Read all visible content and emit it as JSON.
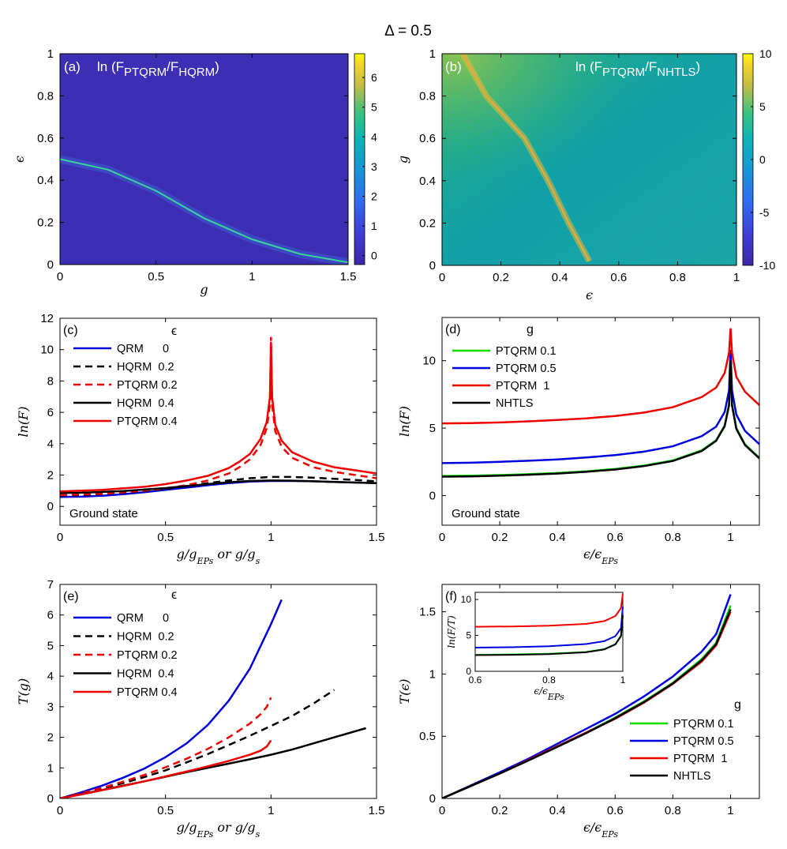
{
  "figure_title": "Δ = 0.5",
  "chart_data": [
    {
      "id": "a",
      "type": "heatmap",
      "panel_label": "(a)",
      "title_text": "ln (F",
      "title_sub1": "PTQRM",
      "title_mid": "/F",
      "title_sub2": "HQRM",
      "title_close": ")",
      "xlabel": "g",
      "ylabel": "ϵ",
      "xlim": [
        0,
        1.5
      ],
      "ylim": [
        0,
        1
      ],
      "xticks": [
        "0",
        "0.5",
        "1",
        "1.5"
      ],
      "yticks": [
        "0",
        "0.2",
        "0.4",
        "0.6",
        "0.8",
        "1"
      ],
      "colorbar": {
        "min": -0.3,
        "max": 6.8,
        "ticks": [
          "0",
          "1",
          "2",
          "3",
          "4",
          "5",
          "6"
        ]
      },
      "ridge": {
        "description_points": [
          [
            0,
            0.5
          ],
          [
            0.25,
            0.45
          ],
          [
            0.5,
            0.35
          ],
          [
            0.75,
            0.22
          ],
          [
            1.0,
            0.12
          ],
          [
            1.25,
            0.05
          ],
          [
            1.5,
            0.01
          ]
        ]
      }
    },
    {
      "id": "b",
      "type": "heatmap",
      "panel_label": "(b)",
      "title_text": "ln (F",
      "title_sub1": "PTQRM",
      "title_mid": "/F",
      "title_sub2": "NHTLS",
      "title_close": ")",
      "xlabel": "ϵ",
      "ylabel": "g",
      "xlim": [
        0,
        1
      ],
      "ylim": [
        0,
        1
      ],
      "xticks": [
        "0",
        "0.2",
        "0.4",
        "0.6",
        "0.8",
        "1"
      ],
      "yticks": [
        "0",
        "0.2",
        "0.4",
        "0.6",
        "0.8",
        "1"
      ],
      "colorbar": {
        "min": -10,
        "max": 10,
        "ticks": [
          "-10",
          "-5",
          "0",
          "5",
          "10"
        ]
      },
      "ridge": {
        "description_points": [
          [
            0.07,
            1.0
          ],
          [
            0.15,
            0.8
          ],
          [
            0.28,
            0.6
          ],
          [
            0.36,
            0.4
          ],
          [
            0.43,
            0.2
          ],
          [
            0.5,
            0.02
          ]
        ]
      },
      "dip_x": 0.5
    },
    {
      "id": "c",
      "type": "line",
      "panel_label": "(c)",
      "legend_header": "ϵ",
      "annotation": "Ground state",
      "xlabel": "g/g_EPs or g/g_s",
      "ylabel": "ln(F)",
      "xlim": [
        0,
        1.5
      ],
      "ylim": [
        -1.2,
        12
      ],
      "xticks": [
        "0",
        "0.5",
        "1",
        "1.5"
      ],
      "yticks": [
        "0",
        "2",
        "4",
        "6",
        "8",
        "10",
        "12"
      ],
      "series": [
        {
          "name": "QRM      0",
          "color": "#0000dd",
          "dash": "solid",
          "x": [
            0,
            0.1,
            0.2,
            0.3,
            0.4,
            0.5,
            0.6,
            0.7,
            0.8,
            0.9,
            1.0,
            1.1,
            1.2,
            1.3,
            1.4,
            1.5
          ],
          "y": [
            0.6,
            0.62,
            0.68,
            0.78,
            0.9,
            1.05,
            1.2,
            1.35,
            1.48,
            1.58,
            1.62,
            1.62,
            1.6,
            1.56,
            1.52,
            1.48
          ]
        },
        {
          "name": "HQRM  0.2",
          "color": "#000000",
          "dash": "dashed",
          "x": [
            0,
            0.1,
            0.2,
            0.3,
            0.4,
            0.5,
            0.6,
            0.7,
            0.8,
            0.9,
            1.0,
            1.1,
            1.2,
            1.3,
            1.4,
            1.5
          ],
          "y": [
            0.7,
            0.72,
            0.78,
            0.87,
            0.98,
            1.12,
            1.3,
            1.48,
            1.65,
            1.8,
            1.88,
            1.88,
            1.83,
            1.76,
            1.68,
            1.6
          ]
        },
        {
          "name": "PTQRM 0.2",
          "color": "#ee0000",
          "dash": "dashed",
          "x": [
            0,
            0.2,
            0.4,
            0.5,
            0.6,
            0.7,
            0.8,
            0.85,
            0.9,
            0.95,
            0.98,
            0.995,
            1.0,
            1.005,
            1.02,
            1.05,
            1.1,
            1.2,
            1.3,
            1.4,
            1.5
          ],
          "y": [
            0.72,
            0.8,
            1.0,
            1.15,
            1.35,
            1.65,
            2.1,
            2.5,
            3.0,
            3.9,
            5.0,
            6.5,
            10.8,
            6.5,
            4.8,
            3.8,
            3.1,
            2.5,
            2.2,
            2.0,
            1.8
          ]
        },
        {
          "name": "HQRM  0.4",
          "color": "#000000",
          "dash": "solid",
          "x": [
            0,
            0.1,
            0.2,
            0.3,
            0.4,
            0.5,
            0.6,
            0.7,
            0.8,
            0.9,
            1.0,
            1.1,
            1.2,
            1.3,
            1.4,
            1.5
          ],
          "y": [
            0.85,
            0.87,
            0.92,
            0.98,
            1.07,
            1.17,
            1.3,
            1.42,
            1.54,
            1.62,
            1.65,
            1.64,
            1.6,
            1.56,
            1.52,
            1.48
          ]
        },
        {
          "name": "PTQRM 0.4",
          "color": "#ee0000",
          "dash": "solid",
          "x": [
            0,
            0.2,
            0.4,
            0.5,
            0.6,
            0.7,
            0.8,
            0.85,
            0.9,
            0.95,
            0.98,
            0.995,
            1.0,
            1.005,
            1.02,
            1.05,
            1.1,
            1.2,
            1.3,
            1.4,
            1.5
          ],
          "y": [
            0.95,
            1.05,
            1.25,
            1.42,
            1.65,
            1.95,
            2.45,
            2.85,
            3.35,
            4.3,
            5.4,
            7.0,
            10.5,
            7.0,
            5.2,
            4.2,
            3.45,
            2.85,
            2.5,
            2.3,
            2.1
          ]
        }
      ]
    },
    {
      "id": "d",
      "type": "line",
      "panel_label": "(d)",
      "legend_header": "g",
      "annotation": "Ground state",
      "xlabel": "ϵ/ϵ_EPs",
      "ylabel": "ln(F)",
      "xlim": [
        0,
        1.1
      ],
      "ylim": [
        -2.2,
        13.2
      ],
      "xticks": [
        "0",
        "0.2",
        "0.4",
        "0.6",
        "0.8",
        "1"
      ],
      "yticks": [
        "0",
        "5",
        "10"
      ],
      "series": [
        {
          "name": "PTQRM 0.1",
          "color": "#00dd00",
          "dash": "solid",
          "x": [
            0,
            0.1,
            0.2,
            0.3,
            0.4,
            0.5,
            0.6,
            0.7,
            0.8,
            0.9,
            0.95,
            0.98,
            0.995,
            1.0,
            1.005,
            1.02,
            1.05,
            1.1
          ],
          "y": [
            1.45,
            1.47,
            1.52,
            1.58,
            1.67,
            1.8,
            1.97,
            2.22,
            2.6,
            3.35,
            4.1,
            5.2,
            6.8,
            10.2,
            6.8,
            5.0,
            3.8,
            2.8
          ]
        },
        {
          "name": "PTQRM 0.5",
          "color": "#0000dd",
          "dash": "solid",
          "x": [
            0,
            0.1,
            0.2,
            0.3,
            0.4,
            0.5,
            0.6,
            0.7,
            0.8,
            0.9,
            0.95,
            0.98,
            0.995,
            1.0,
            1.005,
            1.02,
            1.05,
            1.1
          ],
          "y": [
            2.4,
            2.43,
            2.5,
            2.58,
            2.68,
            2.82,
            3.0,
            3.25,
            3.65,
            4.4,
            5.1,
            6.2,
            7.8,
            10.8,
            7.8,
            6.0,
            4.8,
            3.8
          ]
        },
        {
          "name": "PTQRM  1",
          "color": "#ee0000",
          "dash": "solid",
          "x": [
            0,
            0.1,
            0.2,
            0.3,
            0.4,
            0.5,
            0.6,
            0.7,
            0.8,
            0.9,
            0.95,
            0.98,
            0.995,
            1.0,
            1.005,
            1.02,
            1.05,
            1.1
          ],
          "y": [
            5.35,
            5.37,
            5.42,
            5.5,
            5.6,
            5.72,
            5.9,
            6.15,
            6.55,
            7.3,
            8.0,
            9.1,
            10.6,
            12.4,
            10.6,
            8.8,
            7.7,
            6.7
          ]
        },
        {
          "name": "NHTLS",
          "color": "#000000",
          "dash": "solid",
          "x": [
            0,
            0.1,
            0.2,
            0.3,
            0.4,
            0.5,
            0.6,
            0.7,
            0.8,
            0.9,
            0.95,
            0.98,
            0.995,
            1.0,
            1.005,
            1.02,
            1.05,
            1.1
          ],
          "y": [
            1.4,
            1.42,
            1.47,
            1.54,
            1.63,
            1.76,
            1.93,
            2.18,
            2.56,
            3.3,
            4.05,
            5.15,
            6.7,
            10.0,
            6.7,
            4.95,
            3.75,
            2.75
          ]
        }
      ]
    },
    {
      "id": "e",
      "type": "line",
      "panel_label": "(e)",
      "legend_header": "ϵ",
      "xlabel": "g/g_EPs or g/g_s",
      "ylabel": "T(g)",
      "xlim": [
        0,
        1.5
      ],
      "ylim": [
        0,
        7
      ],
      "xticks": [
        "0",
        "0.5",
        "1",
        "1.5"
      ],
      "yticks": [
        "0",
        "1",
        "2",
        "3",
        "4",
        "5",
        "6",
        "7"
      ],
      "series": [
        {
          "name": "QRM      0",
          "color": "#0000dd",
          "dash": "solid",
          "x": [
            0,
            0.1,
            0.2,
            0.3,
            0.4,
            0.5,
            0.6,
            0.7,
            0.8,
            0.9,
            1.0,
            1.05
          ],
          "y": [
            0,
            0.2,
            0.42,
            0.68,
            0.98,
            1.35,
            1.8,
            2.4,
            3.2,
            4.25,
            5.7,
            6.5
          ]
        },
        {
          "name": "HQRM  0.2",
          "color": "#000000",
          "dash": "dashed",
          "x": [
            0,
            0.1,
            0.2,
            0.3,
            0.4,
            0.5,
            0.6,
            0.7,
            0.8,
            0.9,
            1.0,
            1.1,
            1.2,
            1.3
          ],
          "y": [
            0,
            0.16,
            0.33,
            0.5,
            0.7,
            0.92,
            1.18,
            1.45,
            1.75,
            2.05,
            2.37,
            2.7,
            3.1,
            3.55
          ]
        },
        {
          "name": "PTQRM 0.2",
          "color": "#ee0000",
          "dash": "dashed",
          "x": [
            0,
            0.1,
            0.2,
            0.3,
            0.4,
            0.5,
            0.6,
            0.7,
            0.8,
            0.9,
            0.95,
            0.98,
            1.0
          ],
          "y": [
            0,
            0.17,
            0.35,
            0.55,
            0.77,
            1.02,
            1.3,
            1.62,
            2.0,
            2.45,
            2.75,
            3.0,
            3.3
          ]
        },
        {
          "name": "HQRM  0.4",
          "color": "#000000",
          "dash": "solid",
          "x": [
            0,
            0.1,
            0.2,
            0.3,
            0.4,
            0.5,
            0.6,
            0.7,
            0.8,
            0.9,
            1.0,
            1.1,
            1.2,
            1.3,
            1.45
          ],
          "y": [
            0,
            0.14,
            0.28,
            0.42,
            0.56,
            0.71,
            0.86,
            1.0,
            1.14,
            1.28,
            1.43,
            1.6,
            1.8,
            2.0,
            2.3
          ]
        },
        {
          "name": "PTQRM 0.4",
          "color": "#ee0000",
          "dash": "solid",
          "x": [
            0,
            0.1,
            0.2,
            0.3,
            0.4,
            0.5,
            0.6,
            0.7,
            0.8,
            0.9,
            0.95,
            0.98,
            1.0
          ],
          "y": [
            0,
            0.13,
            0.27,
            0.41,
            0.56,
            0.72,
            0.88,
            1.05,
            1.23,
            1.43,
            1.56,
            1.7,
            1.9
          ]
        }
      ]
    },
    {
      "id": "f",
      "type": "line",
      "panel_label": "(f)",
      "legend_header": "g",
      "xlabel": "ϵ/ϵ_EPs",
      "ylabel": "T(ϵ)",
      "xlim": [
        0,
        1.1
      ],
      "ylim": [
        0,
        1.72
      ],
      "xticks": [
        "0",
        "0.2",
        "0.4",
        "0.6",
        "0.8",
        "1"
      ],
      "yticks": [
        "0",
        "0.5",
        "1",
        "1.5"
      ],
      "series": [
        {
          "name": "PTQRM 0.1",
          "color": "#00dd00",
          "dash": "solid",
          "x": [
            0,
            0.1,
            0.2,
            0.3,
            0.4,
            0.5,
            0.6,
            0.7,
            0.8,
            0.9,
            0.95,
            1.0
          ],
          "y": [
            0,
            0.1,
            0.2,
            0.31,
            0.42,
            0.53,
            0.65,
            0.78,
            0.93,
            1.12,
            1.25,
            1.55
          ]
        },
        {
          "name": "PTQRM 0.5",
          "color": "#0000dd",
          "dash": "solid",
          "x": [
            0,
            0.1,
            0.2,
            0.3,
            0.4,
            0.5,
            0.6,
            0.7,
            0.8,
            0.9,
            0.95,
            1.0
          ],
          "y": [
            0,
            0.105,
            0.21,
            0.32,
            0.44,
            0.56,
            0.68,
            0.82,
            0.98,
            1.18,
            1.32,
            1.64
          ]
        },
        {
          "name": "PTQRM  1",
          "color": "#ee0000",
          "dash": "solid",
          "x": [
            0,
            0.1,
            0.2,
            0.3,
            0.4,
            0.5,
            0.6,
            0.7,
            0.8,
            0.9,
            0.95,
            1.0
          ],
          "y": [
            0,
            0.1,
            0.2,
            0.31,
            0.42,
            0.53,
            0.64,
            0.77,
            0.92,
            1.1,
            1.23,
            1.5
          ]
        },
        {
          "name": "NHTLS",
          "color": "#000000",
          "dash": "solid",
          "x": [
            0,
            0.1,
            0.2,
            0.3,
            0.4,
            0.5,
            0.6,
            0.7,
            0.8,
            0.9,
            0.95,
            1.0
          ],
          "y": [
            0,
            0.1,
            0.2,
            0.305,
            0.415,
            0.525,
            0.645,
            0.775,
            0.925,
            1.11,
            1.24,
            1.52
          ]
        }
      ],
      "inset": {
        "xlabel": "ϵ/ϵ_EPs",
        "ylabel": "ln(F/T)",
        "xlim": [
          0.6,
          1.0
        ],
        "ylim": [
          0,
          11
        ],
        "xticks": [
          "0.6",
          "0.8",
          "1"
        ],
        "yticks": [
          "0",
          "5",
          "10"
        ],
        "series": [
          {
            "name": "PTQRM 0.1",
            "color": "#00dd00",
            "x": [
              0.6,
              0.7,
              0.8,
              0.9,
              0.95,
              0.98,
              0.995,
              1.0
            ],
            "y": [
              2.3,
              2.35,
              2.45,
              2.7,
              3.1,
              3.8,
              5.0,
              8.0
            ]
          },
          {
            "name": "PTQRM 0.5",
            "color": "#0000dd",
            "x": [
              0.6,
              0.7,
              0.8,
              0.9,
              0.95,
              0.98,
              0.995,
              1.0
            ],
            "y": [
              3.3,
              3.35,
              3.5,
              3.8,
              4.2,
              4.9,
              6.0,
              9.0
            ]
          },
          {
            "name": "PTQRM  1",
            "color": "#ee0000",
            "x": [
              0.6,
              0.7,
              0.8,
              0.9,
              0.95,
              0.98,
              0.995,
              1.0
            ],
            "y": [
              6.2,
              6.25,
              6.35,
              6.6,
              7.0,
              7.7,
              8.8,
              10.8
            ]
          },
          {
            "name": "NHTLS",
            "color": "#000000",
            "x": [
              0.6,
              0.7,
              0.8,
              0.9,
              0.95,
              0.98,
              0.995,
              1.0
            ],
            "y": [
              2.25,
              2.3,
              2.4,
              2.65,
              3.05,
              3.75,
              4.9,
              7.8
            ]
          }
        ]
      }
    }
  ]
}
